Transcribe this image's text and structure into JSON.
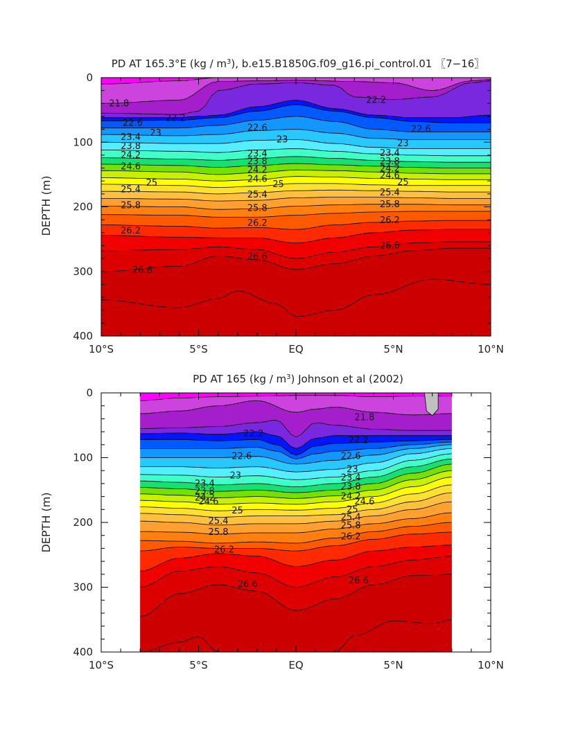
{
  "chart_data": [
    {
      "type": "contour",
      "title": "PD AT 165.3°E (kg / m³), b.e15.B1850G.f09_g16.pi_control.01 〖7−16〗",
      "title_parts": {
        "prefix": "PD AT 165.3°E (kg / m",
        "sup": "3",
        "suffix": "), b.e15.B1850G.f09_g16.pi_control.01 〖7−16〗"
      },
      "xlabel": "",
      "ylabel": "DEPTH (m)",
      "x_range": [
        -10,
        10
      ],
      "y_range": [
        0,
        400
      ],
      "x_ticks": [
        -10,
        -5,
        0,
        5,
        10
      ],
      "x_tick_labels": [
        "10°S",
        "5°S",
        "EQ",
        "5°N",
        "10°N"
      ],
      "y_ticks": [
        0,
        100,
        200,
        300,
        400
      ],
      "y_tick_labels": [
        "0",
        "100",
        "200",
        "300",
        "400"
      ],
      "data_x_range": [
        -10,
        10
      ],
      "contour_levels": [
        21.8,
        22.2,
        22.6,
        23,
        23.4,
        23.8,
        24.2,
        24.6,
        25,
        25.4,
        25.8,
        26.2,
        26.6
      ],
      "contour_labels": [
        {
          "text": "21.8",
          "x": -9.6,
          "y": 40
        },
        {
          "text": "22.2",
          "x": -6.7,
          "y": 63
        },
        {
          "text": "22.2",
          "x": 3.6,
          "y": 35
        },
        {
          "text": "22.6",
          "x": -8.9,
          "y": 70
        },
        {
          "text": "22.6",
          "x": -2.5,
          "y": 78
        },
        {
          "text": "22.6",
          "x": 5.9,
          "y": 80
        },
        {
          "text": "23",
          "x": -7.5,
          "y": 86
        },
        {
          "text": "23",
          "x": -1.0,
          "y": 96
        },
        {
          "text": "23",
          "x": 5.2,
          "y": 102
        },
        {
          "text": "23.4",
          "x": -9.0,
          "y": 92
        },
        {
          "text": "23.4",
          "x": -2.5,
          "y": 118
        },
        {
          "text": "23.4",
          "x": 4.3,
          "y": 117
        },
        {
          "text": "23.8",
          "x": -9.0,
          "y": 106
        },
        {
          "text": "23.8",
          "x": -2.5,
          "y": 130
        },
        {
          "text": "23.8",
          "x": 4.3,
          "y": 130
        },
        {
          "text": "24.2",
          "x": -9.0,
          "y": 120
        },
        {
          "text": "24.2",
          "x": -2.5,
          "y": 143
        },
        {
          "text": "24.2",
          "x": 4.3,
          "y": 141
        },
        {
          "text": "24.6",
          "x": -9.0,
          "y": 138
        },
        {
          "text": "24.6",
          "x": -2.5,
          "y": 157
        },
        {
          "text": "24.6",
          "x": 4.3,
          "y": 152
        },
        {
          "text": "25",
          "x": -7.7,
          "y": 163
        },
        {
          "text": "25",
          "x": -1.2,
          "y": 165
        },
        {
          "text": "25",
          "x": 5.2,
          "y": 162
        },
        {
          "text": "25.4",
          "x": -9.0,
          "y": 173
        },
        {
          "text": "25.4",
          "x": -2.5,
          "y": 181
        },
        {
          "text": "25.4",
          "x": 4.3,
          "y": 178
        },
        {
          "text": "25.8",
          "x": -9.0,
          "y": 198
        },
        {
          "text": "25.8",
          "x": -2.5,
          "y": 202
        },
        {
          "text": "25.8",
          "x": 4.3,
          "y": 196
        },
        {
          "text": "26.2",
          "x": -9.0,
          "y": 237
        },
        {
          "text": "26.2",
          "x": -2.5,
          "y": 225
        },
        {
          "text": "26.2",
          "x": 4.3,
          "y": 221
        },
        {
          "text": "26.6",
          "x": -8.4,
          "y": 298
        },
        {
          "text": "26.6",
          "x": -2.5,
          "y": 277
        },
        {
          "text": "26.6",
          "x": 4.3,
          "y": 260
        }
      ]
    },
    {
      "type": "contour",
      "title": "PD AT 165 (kg / m³) Johnson et al (2002)",
      "title_parts": {
        "prefix": "PD AT 165 (kg / m",
        "sup": "3",
        "suffix": ") Johnson et al (2002)"
      },
      "xlabel": "",
      "ylabel": "DEPTH (m)",
      "x_range": [
        -10,
        10
      ],
      "y_range": [
        0,
        400
      ],
      "x_ticks": [
        -10,
        -5,
        0,
        5,
        10
      ],
      "x_tick_labels": [
        "10°S",
        "5°S",
        "EQ",
        "5°N",
        "10°N"
      ],
      "y_ticks": [
        0,
        100,
        200,
        300,
        400
      ],
      "y_tick_labels": [
        "0",
        "100",
        "200",
        "300",
        "400"
      ],
      "data_x_range": [
        -8,
        8
      ],
      "contour_levels": [
        21.8,
        22.2,
        22.6,
        23,
        23.4,
        23.8,
        24.2,
        24.6,
        25,
        25.4,
        25.8,
        26.2,
        26.6
      ],
      "contour_labels": [
        {
          "text": "21.8",
          "x": 3.0,
          "y": 38
        },
        {
          "text": "22.2",
          "x": -2.7,
          "y": 63
        },
        {
          "text": "22.2",
          "x": 2.7,
          "y": 73
        },
        {
          "text": "22.6",
          "x": -3.3,
          "y": 98
        },
        {
          "text": "22.6",
          "x": 2.3,
          "y": 98
        },
        {
          "text": "23",
          "x": -3.4,
          "y": 128
        },
        {
          "text": "23",
          "x": 2.6,
          "y": 118
        },
        {
          "text": "23.4",
          "x": -5.2,
          "y": 140
        },
        {
          "text": "23.4",
          "x": 2.3,
          "y": 131
        },
        {
          "text": "23.8",
          "x": -5.2,
          "y": 152
        },
        {
          "text": "23.8",
          "x": 2.3,
          "y": 145
        },
        {
          "text": "24.2",
          "x": -5.2,
          "y": 162
        },
        {
          "text": "24.2",
          "x": 2.3,
          "y": 160
        },
        {
          "text": "24.6",
          "x": -5.0,
          "y": 168
        },
        {
          "text": "24.6",
          "x": 3.0,
          "y": 168
        },
        {
          "text": "25",
          "x": -3.3,
          "y": 182
        },
        {
          "text": "25",
          "x": 2.6,
          "y": 180
        },
        {
          "text": "25.4",
          "x": -4.5,
          "y": 198
        },
        {
          "text": "25.4",
          "x": 2.3,
          "y": 192
        },
        {
          "text": "25.8",
          "x": -4.5,
          "y": 215
        },
        {
          "text": "25.8",
          "x": 2.3,
          "y": 205
        },
        {
          "text": "26.2",
          "x": -4.2,
          "y": 242
        },
        {
          "text": "26.2",
          "x": 2.3,
          "y": 222
        },
        {
          "text": "26.6",
          "x": -3.0,
          "y": 295
        },
        {
          "text": "26.6",
          "x": 2.7,
          "y": 290
        }
      ]
    }
  ],
  "colorbands": {
    "colors": [
      "#ff00ff",
      "#cc44dd",
      "#a51ecc",
      "#7a28e0",
      "#0016ff",
      "#005aff",
      "#1496ff",
      "#28c8ff",
      "#55eeff",
      "#40ffc8",
      "#18e070",
      "#76e000",
      "#c8f000",
      "#ffff00",
      "#ffe030",
      "#ffc040",
      "#ffa030",
      "#ff8010",
      "#ff5a00",
      "#ff2a00",
      "#f00000",
      "#dd0000",
      "#cc0000"
    ],
    "line_color": "#000000",
    "missing_color": "#c0c0c0"
  }
}
